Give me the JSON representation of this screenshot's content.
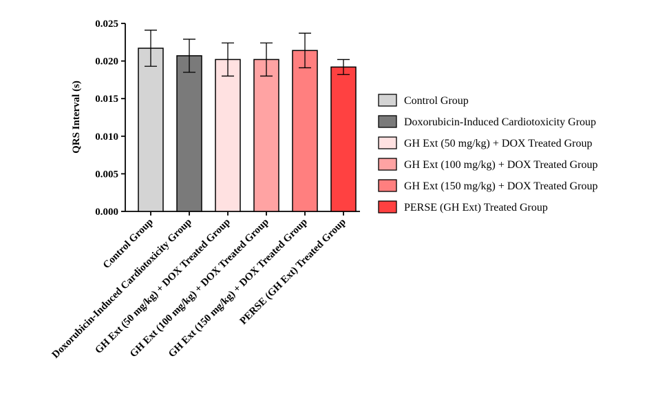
{
  "chart_data": {
    "type": "bar",
    "ylabel": "QRS Interval (s)",
    "ylim": [
      0,
      0.025
    ],
    "yticks": [
      "0.000",
      "0.005",
      "0.010",
      "0.015",
      "0.020",
      "0.025"
    ],
    "grid": false,
    "legend_position": "right",
    "categories": [
      "Control Group",
      "Doxorubicin-Induced Cardiotoxicity Group",
      "GH Ext (50 mg/kg) + DOX Treated Group",
      "GH Ext (100 mg/kg) + DOX Treated Group",
      "GH Ext (150 mg/kg) + DOX Treated Group",
      "PERSE (GH Ext) Treated Group"
    ],
    "values": [
      0.0217,
      0.0207,
      0.0202,
      0.0202,
      0.0214,
      0.0192
    ],
    "errors": [
      0.0024,
      0.0022,
      0.0022,
      0.0022,
      0.0023,
      0.001
    ],
    "colors": [
      "#d4d4d4",
      "#7a7a7a",
      "#ffe1e1",
      "#ffa3a3",
      "#ff7f7f",
      "#ff4141"
    ]
  }
}
